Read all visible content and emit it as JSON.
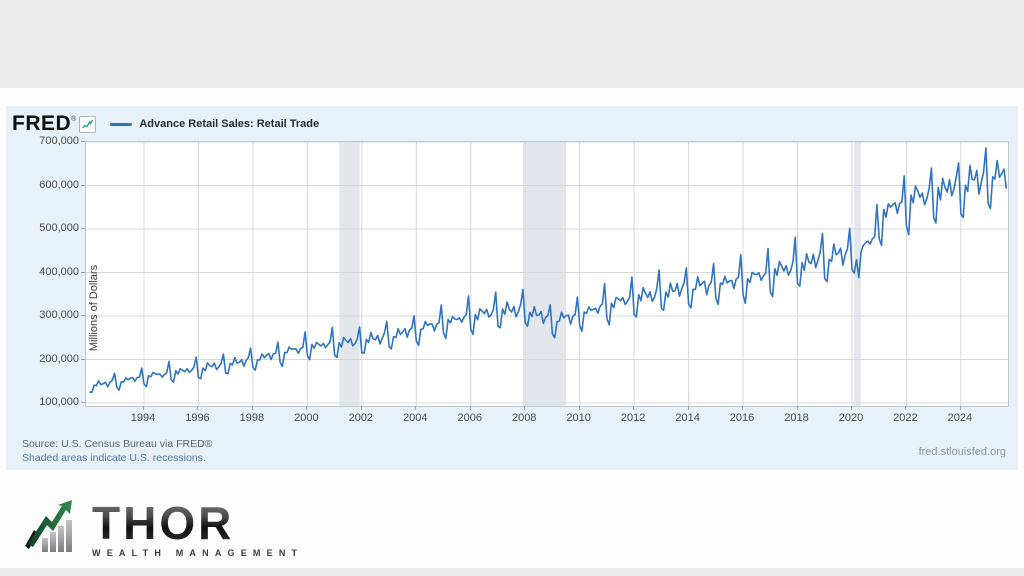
{
  "page": {
    "background": "#ebebeb",
    "card_background": "#fdfdfd"
  },
  "fred_widget": {
    "logo_text": "FRED",
    "logo_reg": "®",
    "legend_label": "Advance Retail Sales: Retail Trade",
    "footer_source": "Source: U.S. Census Bureau via FRED®",
    "footer_note": "Shaded areas indicate U.S. recessions.",
    "footer_site": "fred.stlouisfed.org",
    "colors": {
      "widget_background": "#e8f0f8",
      "plot_background": "#ffffff",
      "plot_border": "#bfc6cc",
      "gridline": "#d4d8db",
      "recession_band": "#e3e7eb",
      "line": "#2f73c4",
      "sparkline_icon": "#28a798"
    }
  },
  "chart_data": {
    "type": "line",
    "title": "Advance Retail Sales: Retail Trade",
    "ylabel": "Millions of Dollars",
    "grid": true,
    "legend_position": "top-left",
    "x_range": [
      1991.87,
      2025.73
    ],
    "ylim": [
      100000,
      700000
    ],
    "xticks": [
      1994,
      1996,
      1998,
      2000,
      2002,
      2004,
      2006,
      2008,
      2010,
      2012,
      2014,
      2016,
      2018,
      2020,
      2022,
      2024
    ],
    "yticks": [
      {
        "value": 100000,
        "label": "100,000"
      },
      {
        "value": 200000,
        "label": "200,000"
      },
      {
        "value": 300000,
        "label": "300,000"
      },
      {
        "value": 400000,
        "label": "400,000"
      },
      {
        "value": 500000,
        "label": "500,000"
      },
      {
        "value": 600000,
        "label": "600,000"
      },
      {
        "value": 700000,
        "label": "700,000"
      }
    ],
    "recessions": [
      [
        2001.17,
        2001.92
      ],
      [
        2007.92,
        2009.5
      ],
      [
        2020.08,
        2020.33
      ]
    ],
    "series": [
      {
        "name": "Advance Retail Sales: Retail Trade",
        "units": "Millions of Dollars",
        "frequency": "monthly",
        "start": {
          "year": 1992,
          "month": 1
        },
        "end": {
          "year": 2025,
          "month": 9
        },
        "annual_anchors": [
          [
            1992,
            140000
          ],
          [
            1993,
            149000
          ],
          [
            1994,
            160000
          ],
          [
            1995,
            170000
          ],
          [
            1996,
            179000
          ],
          [
            1997,
            189000
          ],
          [
            1998,
            200000
          ],
          [
            1999,
            214000
          ],
          [
            2000,
            230000
          ],
          [
            2001,
            237000
          ],
          [
            2002,
            243000
          ],
          [
            2003,
            254000
          ],
          [
            2004,
            269000
          ],
          [
            2005,
            286000
          ],
          [
            2006,
            300000
          ],
          [
            2007,
            312000
          ],
          [
            2008,
            316000
          ],
          [
            2009,
            288000
          ],
          [
            2010,
            304000
          ],
          [
            2011,
            326000
          ],
          [
            2012,
            342000
          ],
          [
            2013,
            354000
          ],
          [
            2014,
            366000
          ],
          [
            2015,
            374000
          ],
          [
            2016,
            384000
          ],
          [
            2017,
            399000
          ],
          [
            2018,
            418000
          ],
          [
            2019,
            434000
          ],
          [
            2020,
            448000
          ],
          [
            2021,
            530000
          ],
          [
            2022,
            567000
          ],
          [
            2023,
            586000
          ],
          [
            2024,
            603000
          ],
          [
            2025,
            620000
          ],
          [
            2026,
            634000
          ]
        ],
        "seasonal_factors": [
          0.9,
          0.868,
          1.0,
          0.975,
          1.045,
          1.005,
          1.0,
          1.02,
          0.955,
          0.995,
          1.02,
          1.14
        ],
        "overrides": {
          "2020-3": 430000,
          "2020-4": 388000,
          "2020-5": 448000,
          "2020-6": 462000,
          "2020-7": 468000,
          "2020-8": 472000,
          "2020-9": 465000,
          "2020-10": 478000,
          "2020-11": 482000,
          "2020-12": 556000,
          "2021-1": 478000,
          "2021-2": 462000,
          "2021-3": 545000,
          "2021-12": 622000,
          "2022-12": 640000,
          "2023-12": 652000,
          "2024-12": 686000
        }
      }
    ]
  },
  "thor_logo": {
    "name": "THOR",
    "subtitle": "WEALTH MANAGEMENT"
  }
}
